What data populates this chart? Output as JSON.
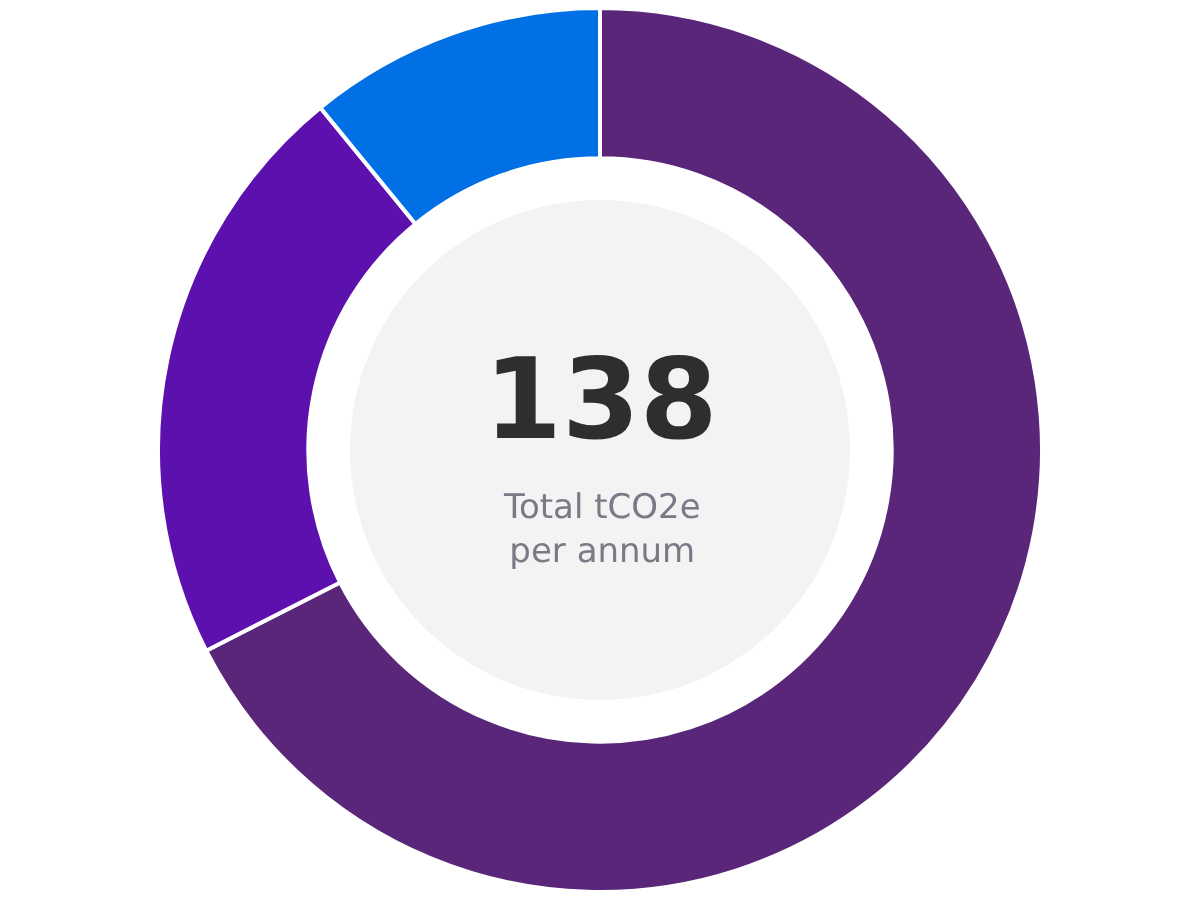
{
  "chart_data": {
    "type": "donut",
    "categories": [
      null,
      null,
      null
    ],
    "values": [
      67.5,
      21.6,
      10.9
    ],
    "colors": [
      "#5a2679",
      "#5c10ad",
      "#0070e4"
    ],
    "annotations": [
      "138",
      "Total tCO2e\nper annum"
    ],
    "legend": false
  }
}
